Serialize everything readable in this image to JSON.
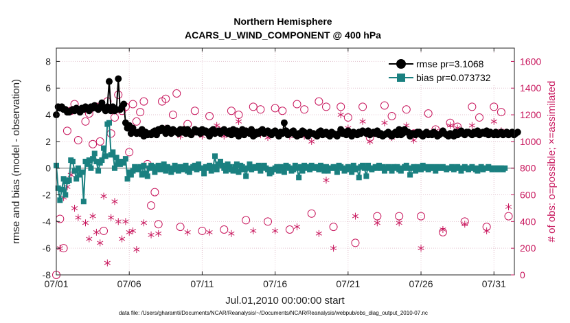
{
  "chart_data": {
    "type": "line",
    "title": "Northern Hemisphere",
    "subtitle": "ACARS_U_WIND_COMPONENT @ 400 hPa",
    "xlabel": "Jul.01,2010 00:00:00 start",
    "ylabel": "rmse and bias (model - observation)",
    "y2label": "# of obs: o=possible; ×=assimilated",
    "footnote": "data file: /Users/gharamti/Documents/NCAR/Reanalysis/~/Documents/NCAR/Reanalysis/webpub/obs_diag_output_2010-07.nc",
    "xlim": [
      0,
      31.4
    ],
    "ylim": [
      -8,
      9
    ],
    "y2lim": [
      0,
      1700
    ],
    "xticks": [
      {
        "value": 0,
        "label": "07/01"
      },
      {
        "value": 5,
        "label": "07/06"
      },
      {
        "value": 10,
        "label": "07/11"
      },
      {
        "value": 15,
        "label": "07/16"
      },
      {
        "value": 20,
        "label": "07/21"
      },
      {
        "value": 25,
        "label": "07/26"
      },
      {
        "value": 30,
        "label": "07/31"
      }
    ],
    "yticks": [
      -8,
      -6,
      -4,
      -2,
      0,
      2,
      4,
      6,
      8
    ],
    "y2ticks": [
      0,
      200,
      400,
      600,
      800,
      1000,
      1200,
      1400,
      1600
    ],
    "grid": true,
    "legend_position": "top-right",
    "colors": {
      "rmse": "#000000",
      "bias": "#1a8080",
      "obs": "#c8175d",
      "zero_line": "#b4b4b4",
      "grid": "#e3c4cf"
    },
    "series": [
      {
        "name": "rmse",
        "legend": "rmse pr=3.1068",
        "marker": "circle",
        "values": [
          4.0,
          4.6,
          4.5,
          4.6,
          4.4,
          4.4,
          4.2,
          4.2,
          4.3,
          4.4,
          4.3,
          4.5,
          4.4,
          4.2,
          4.5,
          4.4,
          4.6,
          4.5,
          4.3,
          4.6,
          4.5,
          4.7,
          4.5,
          4.4,
          4.6,
          4.9,
          4.5,
          4.3,
          4.6,
          6.5,
          4.3,
          4.6,
          4.3,
          4.4,
          6.7,
          4.4,
          4.6,
          4.8,
          3.4,
          3.0,
          3.2,
          2.6,
          3.0,
          2.7,
          2.6,
          2.7,
          2.6,
          2.9,
          2.4,
          2.7,
          2.5,
          2.6,
          2.5,
          2.7,
          2.8,
          2.5,
          2.9,
          2.8,
          3.0,
          2.8,
          2.6,
          3.0,
          2.7,
          2.6,
          2.9,
          2.8,
          2.7,
          2.6,
          2.9,
          2.7,
          2.9,
          2.6,
          2.9,
          2.6,
          2.5,
          2.7,
          2.9,
          2.7,
          2.8,
          2.6,
          2.9,
          2.7,
          2.8,
          2.6,
          2.4,
          2.8,
          2.9,
          2.6,
          2.7,
          2.8,
          2.6,
          2.8,
          2.9,
          2.7,
          2.6,
          2.8,
          2.5,
          2.9,
          2.6,
          2.8,
          2.4,
          2.6,
          2.9,
          2.5,
          2.8,
          2.7,
          2.6,
          2.9,
          2.4,
          2.5,
          2.7,
          2.6,
          2.8,
          2.9,
          2.6,
          2.7,
          2.8,
          2.6,
          2.5,
          2.7,
          2.8,
          2.6,
          2.4,
          2.7,
          2.6,
          3.4,
          2.8,
          2.5,
          2.6,
          2.7,
          2.8,
          2.5,
          2.4,
          2.6,
          2.5,
          2.8,
          2.7,
          2.6,
          2.4,
          2.7,
          2.6,
          2.6,
          2.5,
          2.4,
          2.7,
          2.8,
          2.5,
          2.6,
          2.7,
          2.5,
          2.4,
          2.7,
          2.6,
          2.5,
          2.4,
          2.6,
          2.9,
          2.6,
          2.7,
          2.5,
          2.8,
          2.6,
          2.4,
          2.7,
          2.6,
          2.5,
          2.7,
          2.6,
          2.8,
          2.7,
          2.6,
          2.8,
          2.5,
          2.6,
          2.7,
          2.6,
          2.8,
          2.5,
          2.6,
          2.4,
          2.5,
          2.6,
          2.7,
          2.5,
          2.4,
          2.6,
          2.7,
          2.5,
          2.9,
          2.5,
          2.6,
          2.9,
          2.7,
          2.7,
          2.4,
          2.6,
          2.6,
          2.5,
          2.7,
          2.7,
          2.5,
          2.4,
          2.6,
          2.7,
          2.5,
          2.6,
          2.5,
          2.7,
          2.6,
          2.4,
          2.5,
          2.6,
          2.8,
          2.6,
          2.5,
          2.4,
          2.6,
          2.5,
          2.4,
          2.7,
          2.5,
          2.6,
          2.8,
          2.6,
          2.5,
          2.7,
          2.7,
          2.6,
          2.5,
          2.7,
          2.6,
          2.8,
          2.5,
          2.6,
          2.7,
          2.6,
          2.8,
          2.5,
          2.7,
          2.6,
          2.5,
          2.7,
          2.5,
          2.6,
          2.7,
          2.5,
          2.6,
          2.7,
          2.5,
          2.6,
          2.7,
          2.5,
          2.6,
          2.7
        ]
      },
      {
        "name": "bias",
        "legend": "bias pr=0.073732",
        "marker": "square",
        "values": [
          0.2,
          -1.5,
          -2.4,
          -1.6,
          -0.8,
          -2.0,
          -1.0,
          -0.9,
          0.6,
          0.5,
          -0.2,
          -0.8,
          0.0,
          -0.5,
          -0.3,
          -2.5,
          0.5,
          0.3,
          0.6,
          0.0,
          0.7,
          1.1,
          0.5,
          -0.2,
          0.4,
          0.6,
          1.5,
          0.9,
          3.3,
          3.4,
          1.0,
          1.2,
          0.0,
          0.8,
          0.4,
          0.3,
          0.5,
          0.4,
          0.7,
          -0.8,
          -0.3,
          -0.5,
          -0.2,
          0.1,
          0.0,
          -0.1,
          0.1,
          -0.5,
          0.2,
          -0.4,
          -0.6,
          0.0,
          0.2,
          0.1,
          -0.3,
          0.0,
          0.2,
          -0.1,
          0.0,
          0.3,
          -0.2,
          0.1,
          0.0,
          -0.3,
          -0.1,
          0.2,
          0.0,
          -0.2,
          0.1,
          -0.1,
          0.0,
          0.2,
          -0.2,
          -0.3,
          0.0,
          0.1,
          0.2,
          -0.1,
          0.3,
          0.0,
          0.0,
          -0.4,
          0.1,
          0.0,
          0.2,
          -0.2,
          0.1,
          0.9,
          -0.1,
          0.3,
          0.5,
          0.2,
          0.0,
          -0.2,
          0.3,
          0.1,
          -0.1,
          -0.2,
          0.1,
          0.3,
          -0.3,
          0.2,
          0.1,
          -0.1,
          -0.6,
          0.0,
          0.3,
          -0.1,
          0.0,
          0.1,
          0.0,
          0.2,
          -0.2,
          0.1,
          0.2,
          0.0,
          -0.1,
          -0.4,
          -0.3,
          -0.1,
          0.0,
          0.1,
          -0.2,
          0.1,
          0.0,
          -0.3,
          0.2,
          0.1,
          0.0,
          -0.2,
          -0.1,
          0.2,
          0.0,
          -0.7,
          0.1,
          -0.2,
          0.2,
          0.0,
          0.1,
          -0.1,
          0.2,
          0.0,
          0.1,
          0.0,
          -0.1,
          0.2,
          0.0,
          -0.2,
          0.1,
          -0.2,
          0.0,
          0.0,
          0.1,
          0.0,
          -0.3,
          0.2,
          0.1,
          0.0,
          -0.2,
          -0.1,
          0.1,
          0.0,
          -0.3,
          0.2,
          -0.1,
          0.0,
          -0.7,
          0.1,
          0.2,
          0.0,
          -0.6,
          0.2,
          0.0,
          -0.1,
          0.0,
          0.1,
          0.0,
          0.2,
          0.0,
          0.1,
          -0.2,
          0.0,
          0.1,
          0.0,
          -0.2,
          0.1,
          0.0,
          0.1,
          -0.1,
          -0.2,
          0.0,
          0.1,
          0.2,
          0.0,
          -0.5,
          0.0,
          0.1,
          -0.2,
          0.1,
          0.0,
          -0.1,
          0.2,
          0.0,
          0.1,
          -0.1,
          0.0,
          0.1,
          0.0,
          -0.2,
          0.1,
          0.0,
          0.0,
          0.1,
          0.0,
          -0.1,
          0.0,
          0.0,
          0.1,
          -0.1,
          0.0,
          0.1,
          0.0,
          -0.2,
          0.0,
          0.1,
          0.0,
          -0.1,
          0.0,
          0.1,
          0.0,
          -0.1,
          -0.2,
          0.0,
          0.1,
          -0.1,
          0.0,
          0.0,
          0.1,
          0.0,
          -0.1,
          0.0,
          0.0,
          -0.1,
          0.0,
          0.0,
          -0.1,
          0.0
        ]
      },
      {
        "name": "possible",
        "legend": "o=possible",
        "axis": "right",
        "marker": "open-circle",
        "x": [
          0.0,
          0.25,
          0.5,
          0.75,
          1.0,
          1.25,
          1.5,
          2.0,
          2.25,
          2.5,
          2.75,
          3.0,
          3.25,
          3.5,
          3.75,
          4.0,
          4.25,
          4.5,
          4.75,
          5.0,
          5.25,
          5.5,
          5.75,
          6.0,
          6.25,
          6.5,
          6.75,
          7.0,
          7.25,
          7.5,
          8.0,
          8.25,
          8.5,
          9.0,
          9.5,
          10.0,
          10.5,
          11.0,
          11.5,
          12.0,
          12.5,
          13.0,
          13.5,
          14.0,
          14.5,
          15.0,
          15.5,
          16.0,
          16.5,
          17.0,
          17.5,
          18.0,
          18.5,
          19.0,
          19.5,
          20.0,
          20.5,
          21.0,
          21.5,
          22.0,
          22.5,
          23.0,
          23.5,
          24.0,
          24.5,
          25.0,
          25.5,
          26.0,
          26.5,
          27.0,
          27.5,
          28.0,
          28.5,
          29.0,
          29.5,
          30.0,
          30.5,
          31.0
        ],
        "values": [
          0,
          420,
          200,
          1080,
          1230,
          1280,
          1010,
          1150,
          1210,
          980,
          1260,
          1000,
          330,
          1300,
          1060,
          1180,
          1350,
          1230,
          1260,
          920,
          1280,
          1150,
          1220,
          1300,
          830,
          520,
          620,
          380,
          1300,
          1320,
          1200,
          1360,
          360,
          1130,
          1230,
          330,
          1190,
          1090,
          340,
          1230,
          1200,
          410,
          1260,
          1240,
          400,
          1250,
          1230,
          340,
          1280,
          1240,
          460,
          1300,
          1260,
          360,
          1260,
          1180,
          240,
          1260,
          1030,
          440,
          1270,
          1190,
          440,
          1240,
          1060,
          440,
          1210,
          1090,
          320,
          1140,
          1110,
          400,
          1260,
          1180,
          360,
          1260,
          1220,
          440
        ]
      },
      {
        "name": "assimilated",
        "legend": "×=assimilated",
        "axis": "right",
        "marker": "asterisk",
        "x": [
          0.25,
          0.5,
          0.75,
          1.0,
          1.25,
          1.5,
          2.0,
          2.25,
          2.5,
          2.75,
          3.0,
          3.25,
          3.5,
          3.75,
          4.0,
          4.25,
          4.5,
          4.75,
          5.0,
          5.25,
          5.5,
          6.0,
          6.5,
          7.0,
          7.5,
          8.0,
          8.5,
          9.0,
          9.5,
          10.0,
          10.5,
          11.0,
          11.5,
          12.0,
          12.5,
          13.0,
          13.5,
          14.0,
          14.5,
          15.0,
          15.5,
          16.0,
          16.5,
          17.0,
          17.5,
          18.0,
          18.5,
          19.0,
          19.5,
          20.0,
          20.5,
          21.0,
          21.5,
          22.0,
          22.5,
          23.0,
          23.5,
          24.0,
          24.5,
          25.0,
          25.5,
          26.0,
          26.5,
          27.0,
          27.5,
          28.0,
          28.5,
          29.0,
          29.5,
          30.0,
          30.5,
          31.0
        ],
        "values": [
          200,
          580,
          660,
          750,
          500,
          430,
          390,
          270,
          440,
          320,
          240,
          590,
          90,
          430,
          550,
          400,
          270,
          400,
          320,
          330,
          190,
          390,
          300,
          310,
          1100,
          1080,
          1040,
          320,
          1070,
          1040,
          320,
          1120,
          1040,
          310,
          1150,
          1080,
          330,
          1050,
          1030,
          330,
          1060,
          1040,
          360,
          1040,
          1000,
          310,
          710,
          200,
          1200,
          1100,
          440,
          1150,
          1000,
          390,
          1140,
          1030,
          390,
          1120,
          1010,
          200,
          1070,
          1080,
          340,
          1120,
          1100,
          380,
          1120,
          1050,
          330,
          1150,
          1080,
          510
        ]
      }
    ]
  }
}
